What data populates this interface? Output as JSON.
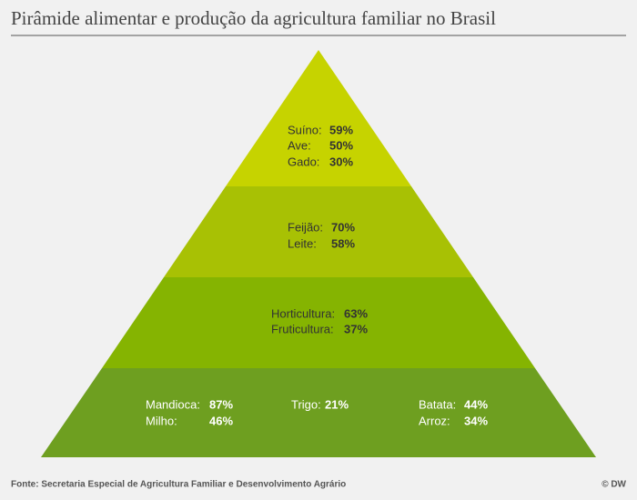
{
  "title": "Pirâmide alimentar e produção da agricultura familiar no Brasil",
  "tiers": [
    {
      "items": [
        {
          "label": "Suíno:",
          "value": "59%"
        },
        {
          "label": "Ave:",
          "value": "50%"
        },
        {
          "label": "Gado:",
          "value": "30%"
        }
      ]
    },
    {
      "items": [
        {
          "label": "Feijão:",
          "value": "70%"
        },
        {
          "label": "Leite:",
          "value": "58%"
        }
      ]
    },
    {
      "items": [
        {
          "label": "Horticultura:",
          "value": "63%"
        },
        {
          "label": "Fruticultura:",
          "value": "37%"
        }
      ]
    },
    {
      "items": [
        {
          "label": "Mandioca:",
          "value": "87%"
        },
        {
          "label": "Milho:",
          "value": "46%"
        },
        {
          "label": "Trigo:",
          "value": "21%"
        },
        {
          "label": "Batata:",
          "value": "44%"
        },
        {
          "label": "Arroz:",
          "value": "34%"
        }
      ]
    }
  ],
  "source": "Fonte: Secretaria Especial de Agricultura Familiar e Desenvolvimento Agrário",
  "credit": "© DW"
}
